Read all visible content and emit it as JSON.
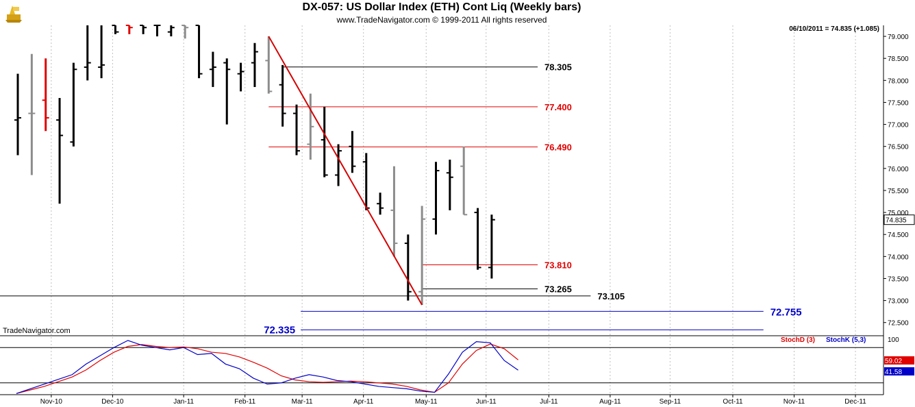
{
  "header": {
    "title": "DX-057:  US Dollar Index (ETH) Cont Liq  (Weekly bars)",
    "copyright": "www.TradeNavigator.com © 1999-2011 All rights reserved",
    "readout": "06/10/2011 = 74.835 (+1.085)",
    "brand": "TradeNavigator.com"
  },
  "colors": {
    "up_bar": "#000000",
    "down_bar": "#8c8c8c",
    "highlight_bar": "#e00000",
    "trendline": "#d40000",
    "black_level": "#000000",
    "red_level": "#e00000",
    "blue_level": "#0000c8",
    "stoch_d": "#e00000",
    "stoch_k": "#0000c8",
    "last_price_box": "#ffffff"
  },
  "chart_data": [
    {
      "type": "ohlc",
      "ylim": [
        72.2,
        79.25
      ],
      "y_ticks": [
        "72.500",
        "73.000",
        "73.500",
        "74.000",
        "74.500",
        "75.000",
        "75.500",
        "76.000",
        "76.500",
        "77.000",
        "77.500",
        "78.000",
        "78.500",
        "79.000"
      ],
      "x_ticks": [
        "Nov-10",
        "Dec-10",
        "Jan-11",
        "Feb-11",
        "Mar-11",
        "Apr-11",
        "May-11",
        "Jun-11",
        "Jul-11",
        "Aug-11",
        "Sep-11",
        "Oct-11",
        "Nov-11",
        "Dec-11"
      ],
      "last_price_label": "74.835",
      "bars": [
        {
          "o": 77.1,
          "h": 78.15,
          "l": 76.3,
          "c": 77.15,
          "color": "up"
        },
        {
          "o": 77.25,
          "h": 78.6,
          "l": 75.85,
          "c": 77.25,
          "color": "down"
        },
        {
          "o": 77.55,
          "h": 78.5,
          "l": 76.85,
          "c": 77.15,
          "color": "highlight"
        },
        {
          "o": 77.1,
          "h": 77.6,
          "l": 75.2,
          "c": 76.75,
          "color": "up"
        },
        {
          "o": 76.6,
          "h": 78.4,
          "l": 76.5,
          "c": 78.25,
          "color": "up"
        },
        {
          "o": 78.3,
          "h": 79.3,
          "l": 78.0,
          "c": 78.4,
          "color": "up"
        },
        {
          "o": 78.3,
          "h": 79.3,
          "l": 78.05,
          "c": 78.35,
          "color": "up"
        },
        {
          "o": 79.3,
          "h": 79.3,
          "l": 79.05,
          "c": 79.1,
          "color": "up"
        },
        {
          "o": 79.3,
          "h": 79.3,
          "l": 79.05,
          "c": 79.2,
          "color": "highlight"
        },
        {
          "o": 79.3,
          "h": 79.3,
          "l": 79.05,
          "c": 79.2,
          "color": "up"
        },
        {
          "o": 79.3,
          "h": 79.3,
          "l": 79.0,
          "c": 79.25,
          "color": "up"
        },
        {
          "o": 79.1,
          "h": 79.3,
          "l": 79.0,
          "c": 79.2,
          "color": "up"
        },
        {
          "o": 79.3,
          "h": 79.3,
          "l": 78.95,
          "c": 79.2,
          "color": "down"
        },
        {
          "o": 79.3,
          "h": 79.3,
          "l": 78.05,
          "c": 78.15,
          "color": "up"
        },
        {
          "o": 78.25,
          "h": 78.65,
          "l": 77.85,
          "c": 78.3,
          "color": "up"
        },
        {
          "o": 78.4,
          "h": 78.5,
          "l": 77.0,
          "c": 78.25,
          "color": "up"
        },
        {
          "o": 78.15,
          "h": 78.4,
          "l": 77.75,
          "c": 78.2,
          "color": "up"
        },
        {
          "o": 78.4,
          "h": 78.85,
          "l": 77.85,
          "c": 78.65,
          "color": "up"
        },
        {
          "o": 78.45,
          "h": 79.0,
          "l": 77.7,
          "c": 77.75,
          "color": "down"
        },
        {
          "o": 77.9,
          "h": 78.35,
          "l": 76.95,
          "c": 77.25,
          "color": "up"
        },
        {
          "o": 77.25,
          "h": 77.45,
          "l": 76.3,
          "c": 76.4,
          "color": "up"
        },
        {
          "o": 76.55,
          "h": 77.7,
          "l": 76.2,
          "c": 76.95,
          "color": "down"
        },
        {
          "o": 76.65,
          "h": 77.4,
          "l": 75.8,
          "c": 75.85,
          "color": "up"
        },
        {
          "o": 75.85,
          "h": 76.55,
          "l": 75.6,
          "c": 76.4,
          "color": "up"
        },
        {
          "o": 76.5,
          "h": 76.85,
          "l": 75.9,
          "c": 76.05,
          "color": "up"
        },
        {
          "o": 76.15,
          "h": 76.35,
          "l": 75.05,
          "c": 75.1,
          "color": "up"
        },
        {
          "o": 75.2,
          "h": 75.45,
          "l": 74.95,
          "c": 75.1,
          "color": "up"
        },
        {
          "o": 75.05,
          "h": 76.05,
          "l": 74.0,
          "c": 74.3,
          "color": "down"
        },
        {
          "o": 74.3,
          "h": 74.5,
          "l": 73.0,
          "c": 73.2,
          "color": "up"
        },
        {
          "o": 73.2,
          "h": 75.15,
          "l": 72.9,
          "c": 74.85,
          "color": "down"
        },
        {
          "o": 74.85,
          "h": 76.15,
          "l": 74.5,
          "c": 75.95,
          "color": "up"
        },
        {
          "o": 75.9,
          "h": 76.2,
          "l": 75.05,
          "c": 75.8,
          "color": "up"
        },
        {
          "o": 76.05,
          "h": 76.5,
          "l": 74.95,
          "c": 74.95,
          "color": "down"
        },
        {
          "o": 75.0,
          "h": 75.1,
          "l": 73.7,
          "c": 73.75,
          "color": "up"
        },
        {
          "o": 73.75,
          "h": 74.95,
          "l": 73.5,
          "c": 74.835,
          "color": "up"
        }
      ],
      "trendline": {
        "from_bar": 18,
        "from_value": 79.0,
        "to_bar": 29,
        "to_value": 72.9
      },
      "levels": [
        {
          "value": 78.305,
          "label": "78.305",
          "color": "black",
          "from_bar": 19,
          "to_bar": 37.3
        },
        {
          "value": 77.4,
          "label": "77.400",
          "color": "red",
          "from_bar": 18,
          "to_bar": 37.3
        },
        {
          "value": 76.49,
          "label": "76.490",
          "color": "red",
          "from_bar": 18,
          "to_bar": 37.3
        },
        {
          "value": 73.81,
          "label": "73.810",
          "color": "red",
          "from_bar": 29,
          "to_bar": 37.3
        },
        {
          "value": 73.265,
          "label": "73.265",
          "color": "black",
          "from_bar": 29,
          "to_bar": 37.3
        },
        {
          "value": 73.105,
          "label": "73.105",
          "color": "black",
          "from_bar": -1.3,
          "to_bar": 41.1
        },
        {
          "value": 72.755,
          "label": "72.755",
          "color": "blue",
          "from_bar": 20.3,
          "to_bar": 53.5
        },
        {
          "value": 72.335,
          "label": "72.335",
          "color": "blue",
          "from_bar": 20.3,
          "to_bar": 53.5
        }
      ]
    },
    {
      "type": "line",
      "legend": [
        "StochD (3)",
        "StochK (5,3)"
      ],
      "y_ticks": [
        "100"
      ],
      "ylim": [
        0,
        100
      ],
      "reference_lines": [
        80,
        20
      ],
      "last_labels": [
        "59.02",
        "41.58"
      ],
      "series": [
        {
          "name": "StochD (3)",
          "color": "red",
          "values": [
            2,
            8,
            14,
            22,
            30,
            42,
            58,
            72,
            82,
            85,
            82,
            80,
            81,
            78,
            72,
            70,
            64,
            55,
            45,
            32,
            25,
            22,
            21,
            22,
            23,
            22,
            20,
            18,
            14,
            8,
            4,
            20,
            52,
            75,
            86,
            78,
            59.02
          ]
        },
        {
          "name": "StochK (5,3)",
          "color": "blue",
          "values": [
            2,
            10,
            18,
            26,
            34,
            52,
            66,
            80,
            92,
            84,
            80,
            76,
            80,
            68,
            70,
            52,
            44,
            28,
            18,
            20,
            28,
            34,
            30,
            24,
            22,
            18,
            14,
            12,
            10,
            6,
            4,
            35,
            72,
            90,
            88,
            58,
            41.58
          ]
        }
      ]
    }
  ]
}
